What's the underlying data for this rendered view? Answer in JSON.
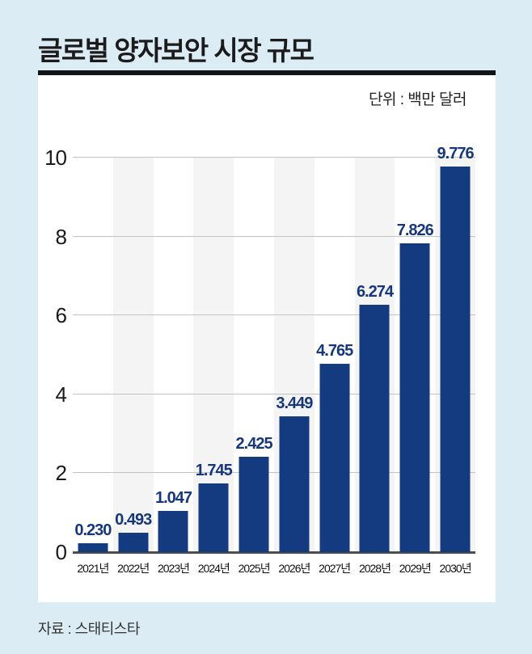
{
  "page": {
    "title": "글로벌 양자보안 시장 규모",
    "unit_label": "단위 : 백만 달러",
    "source": "자료 : 스태티스타"
  },
  "chart_data": {
    "type": "bar",
    "title": "글로벌 양자보안 시장 규모",
    "unit": "백만 달러",
    "source": "스태티스타",
    "categories": [
      "2021년",
      "2022년",
      "2023년",
      "2024년",
      "2025년",
      "2026년",
      "2027년",
      "2028년",
      "2029년",
      "2030년"
    ],
    "values": [
      0.23,
      0.493,
      1.047,
      1.745,
      2.425,
      3.449,
      4.765,
      6.274,
      7.826,
      9.776
    ],
    "value_labels": [
      "0.230",
      "0.493",
      "1.047",
      "1.745",
      "2.425",
      "3.449",
      "4.765",
      "6.274",
      "7.826",
      "9.776"
    ],
    "y_ticks": [
      0,
      2,
      4,
      6,
      8,
      10
    ],
    "ylim": [
      0,
      10
    ],
    "xlabel": "",
    "ylabel": "",
    "grid": "horizontal",
    "legend": "none",
    "colors": {
      "bar": "#143a7f",
      "value_label": "#17377c",
      "band": "#f4f4f4",
      "background": "#dcecf4",
      "panel": "#ffffff",
      "gridline": "#c3c3c3",
      "baseline": "#4d4d4d"
    }
  }
}
